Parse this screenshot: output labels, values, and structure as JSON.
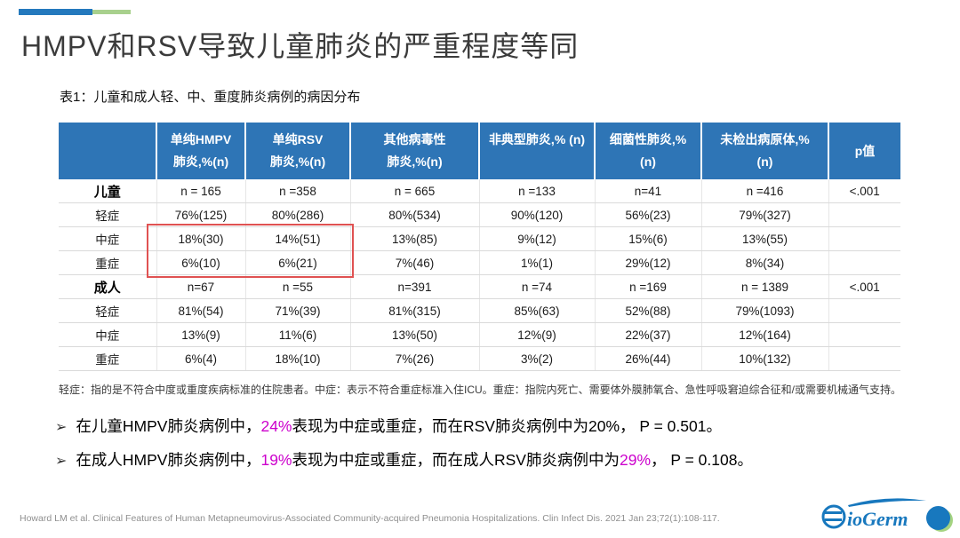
{
  "title": "HMPV和RSV导致儿童肺炎的严重程度等同",
  "colors": {
    "header_blue": "#2E75B6",
    "accent_bar_blue": "#2479BD",
    "accent_bar_green": "#A8D08D",
    "highlight_magenta": "#CC00CC",
    "red_box": "#E05252",
    "logo_blue": "#1878BE",
    "logo_green": "#A4D381"
  },
  "table": {
    "caption": "表1：儿童和成人轻、中、重度肺炎病例的病因分布",
    "columns": [
      {
        "lines": [
          ""
        ],
        "center": true
      },
      {
        "lines": [
          "单纯HMPV",
          "肺炎,%(n)"
        ]
      },
      {
        "lines": [
          "单纯RSV",
          "肺炎,%(n)"
        ]
      },
      {
        "lines": [
          "其他病毒性",
          "肺炎,%(n)"
        ]
      },
      {
        "lines": [
          "非典型肺炎,% (n)",
          ""
        ]
      },
      {
        "lines": [
          "细菌性肺炎,%",
          "(n)"
        ]
      },
      {
        "lines": [
          "未检出病原体,%",
          "(n)"
        ]
      },
      {
        "lines": [
          "p值"
        ],
        "center": true
      }
    ],
    "rows": [
      {
        "label": "儿童",
        "bold": true,
        "cells": [
          "n = 165",
          "n =358",
          "n = 665",
          "n =133",
          "n=41",
          "n =416",
          "<.001"
        ]
      },
      {
        "label": "轻症",
        "bold": false,
        "cells": [
          "76%(125)",
          "80%(286)",
          "80%(534)",
          "90%(120)",
          "56%(23)",
          "79%(327)",
          ""
        ]
      },
      {
        "label": "中症",
        "bold": false,
        "cells": [
          "18%(30)",
          "14%(51)",
          "13%(85)",
          "9%(12)",
          "15%(6)",
          "13%(55)",
          ""
        ]
      },
      {
        "label": "重症",
        "bold": false,
        "cells": [
          "6%(10)",
          "6%(21)",
          "7%(46)",
          "1%(1)",
          "29%(12)",
          "8%(34)",
          ""
        ]
      },
      {
        "label": "成人",
        "bold": true,
        "cells": [
          "n=67",
          "n =55",
          "n=391",
          "n =74",
          "n =169",
          "n = 1389",
          "<.001"
        ]
      },
      {
        "label": "轻症",
        "bold": false,
        "cells": [
          "81%(54)",
          "71%(39)",
          "81%(315)",
          "85%(63)",
          "52%(88)",
          "79%(1093)",
          ""
        ]
      },
      {
        "label": "中症",
        "bold": false,
        "cells": [
          "13%(9)",
          "11%(6)",
          "13%(50)",
          "12%(9)",
          "22%(37)",
          "12%(164)",
          ""
        ]
      },
      {
        "label": "重症",
        "bold": false,
        "cells": [
          "6%(4)",
          "18%(10)",
          "7%(26)",
          "3%(2)",
          "26%(44)",
          "10%(132)",
          ""
        ]
      }
    ],
    "footnote": "轻症：指的是不符合中度或重度疾病标准的住院患者。中症：表示不符合重症标准入住ICU。重症：指院内死亡、需要体外膜肺氧合、急性呼吸窘迫综合征和/或需要机械通气支持。"
  },
  "bullet_marker": "➢",
  "bullets": [
    {
      "segments": [
        {
          "t": "在儿童HMPV肺炎病例中，"
        },
        {
          "t": "24%",
          "hl": true
        },
        {
          "t": "表现为中症或重症，而在RSV肺炎病例中为20%， P = 0.501。"
        }
      ]
    },
    {
      "segments": [
        {
          "t": "在成人HMPV肺炎病例中，"
        },
        {
          "t": "19%",
          "hl": true
        },
        {
          "t": "表现为中症或重症，而在成人RSV肺炎病例中为"
        },
        {
          "t": "29%",
          "hl": true
        },
        {
          "t": "， P = 0.108。"
        }
      ]
    }
  ],
  "footer": {
    "citation": "Howard LM et al. Clinical Features of Human Metapneumovirus-Associated Community-acquired Pneumonia Hospitalizations. Clin Infect Dis. 2021 Jan 23;72(1):108-117.",
    "logo_text": "ioGerm"
  }
}
